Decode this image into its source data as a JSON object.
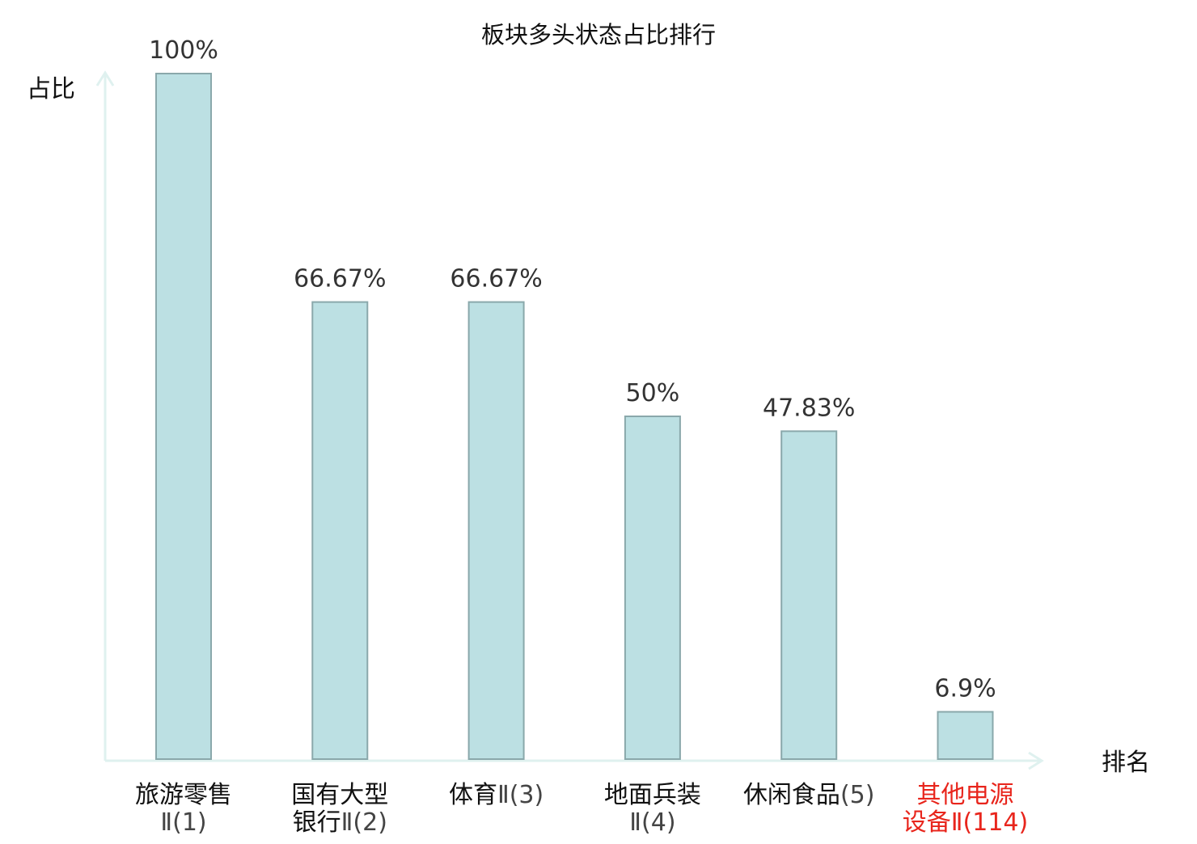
{
  "chart_data": {
    "type": "bar",
    "title": "板块多头状态占比排行",
    "xlabel": "排名",
    "ylabel": "占比",
    "ylim": [
      0,
      100
    ],
    "grid": false,
    "categories": [
      {
        "name": "旅游零售",
        "rank": "Ⅱ(1)",
        "lines": [
          "旅游零售",
          "Ⅱ(1)"
        ],
        "highlight": false
      },
      {
        "name": "国有大型银行",
        "rank": "Ⅱ(2)",
        "lines": [
          "国有大型",
          "银行Ⅱ(2)"
        ],
        "highlight": false
      },
      {
        "name": "体育",
        "rank": "Ⅱ(3)",
        "lines": [
          "体育Ⅱ(3)"
        ],
        "highlight": false
      },
      {
        "name": "地面兵装",
        "rank": "Ⅱ(4)",
        "lines": [
          "地面兵装",
          "Ⅱ(4)"
        ],
        "highlight": false
      },
      {
        "name": "休闲食品",
        "rank": "(5)",
        "lines": [
          "休闲食品(5)"
        ],
        "highlight": false
      },
      {
        "name": "其他电源设备",
        "rank": "Ⅱ(114)",
        "lines": [
          "其他电源",
          "设备Ⅱ(114)"
        ],
        "highlight": true
      }
    ],
    "values": [
      100,
      66.67,
      66.67,
      50,
      47.83,
      6.9
    ],
    "value_labels": [
      "100%",
      "66.67%",
      "66.67%",
      "50%",
      "47.83%",
      "6.9%"
    ]
  },
  "colors": {
    "bar_fill": "#bce0e3",
    "bar_stroke": "#8aa8ab",
    "axis": "#dff1ef",
    "text": "#111111",
    "value_text": "#333333",
    "rank_text": "#444444",
    "highlight": "#e8251c"
  }
}
